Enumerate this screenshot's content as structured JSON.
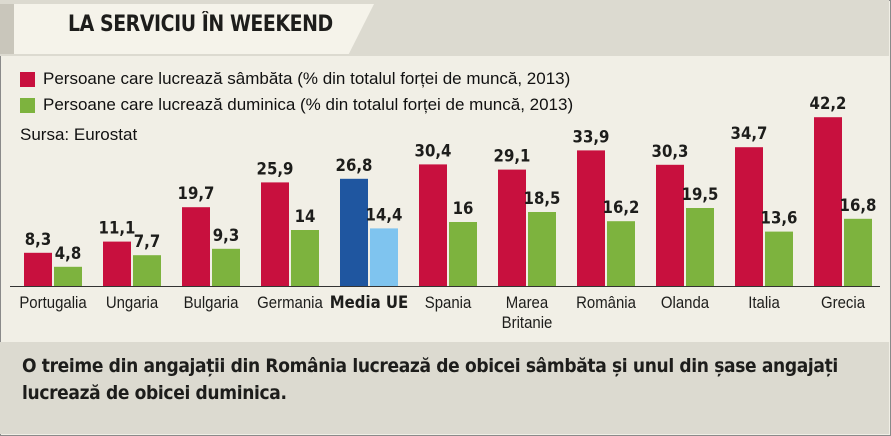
{
  "header": {
    "title": "LA SERVICIU ÎN WEEKEND"
  },
  "legend": {
    "saturday": "Persoane care lucrează sâmbăta (% din totalul forței de muncă, 2013)",
    "sunday": "Persoane care lucrează duminica (% din totalul forței de muncă, 2013)"
  },
  "source": "Sursa: Eurostat",
  "footer": {
    "line1": "O treime din angajații din România lucrează de obicei sâmbăta și unul din șase angajați",
    "line2": "lucrează de obicei duminica."
  },
  "colors": {
    "saturday": "#c8103e",
    "sunday": "#7db33e",
    "eu_saturday": "#1f56a0",
    "eu_sunday": "#7fc4ef"
  },
  "chart_data": {
    "type": "bar",
    "categories": [
      "Portugalia",
      "Ungaria",
      "Bulgaria",
      "Germania",
      "Media UE",
      "Spania",
      "Marea Britanie",
      "România",
      "Olanda",
      "Italia",
      "Grecia"
    ],
    "category_label_lines": [
      [
        "Portugalia"
      ],
      [
        "Ungaria"
      ],
      [
        "Bulgaria"
      ],
      [
        "Germania"
      ],
      [
        "Media UE"
      ],
      [
        "Spania"
      ],
      [
        "Marea",
        "Britanie"
      ],
      [
        "România"
      ],
      [
        "Olanda"
      ],
      [
        "Italia"
      ],
      [
        "Grecia"
      ]
    ],
    "highlight_category": "Media UE",
    "series": [
      {
        "name": "Persoane care lucrează sâmbăta (% din totalul forței de muncă, 2013)",
        "values": [
          8.3,
          11.1,
          19.7,
          25.9,
          26.8,
          30.4,
          29.1,
          33.9,
          30.3,
          34.7,
          42.2
        ]
      },
      {
        "name": "Persoane care lucrează duminica (% din totalul forței de muncă, 2013)",
        "values": [
          4.8,
          7.7,
          9.3,
          14,
          14.4,
          16,
          18.5,
          16.2,
          19.5,
          13.6,
          16.8
        ]
      }
    ],
    "value_labels": [
      [
        "8,3",
        "11,1",
        "19,7",
        "25,9",
        "26,8",
        "30,4",
        "29,1",
        "33,9",
        "30,3",
        "34,7",
        "42,2"
      ],
      [
        "4,8",
        "7,7",
        "9,3",
        "14",
        "14,4",
        "16",
        "18,5",
        "16,2",
        "19,5",
        "13,6",
        "16,8"
      ]
    ],
    "ylim": [
      0,
      45
    ],
    "grid": false,
    "legend_position": "top-left"
  }
}
